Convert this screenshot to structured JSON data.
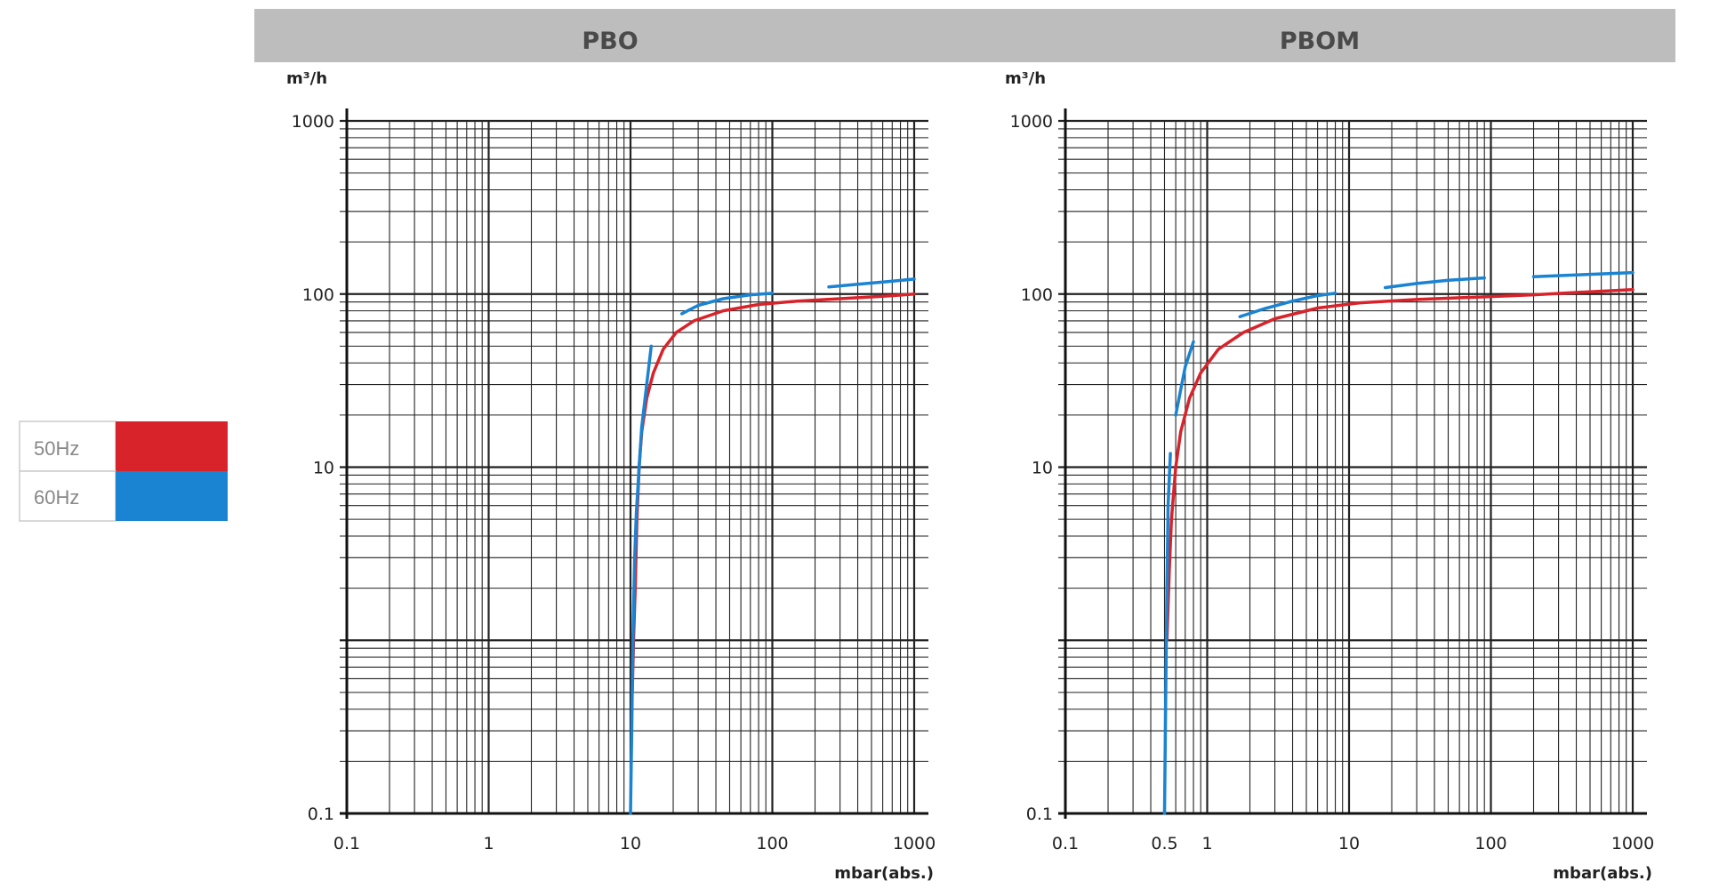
{
  "legend": {
    "items": [
      {
        "label": "50Hz",
        "color": "#d8232a"
      },
      {
        "label": "60Hz",
        "color": "#1a83d2"
      }
    ]
  },
  "chart_data": [
    {
      "type": "line",
      "title": "PBO",
      "ylabel": "m³/h",
      "xlabel": "mbar(abs.)",
      "x_scale": "log",
      "y_scale": "log",
      "xlim": [
        0.1,
        1000
      ],
      "ylim": [
        0.1,
        1000
      ],
      "x_tick_labels": [
        "0.1",
        "1",
        "10",
        "100",
        "1000"
      ],
      "y_tick_labels": [
        "0.1",
        "10",
        "100",
        "1000"
      ],
      "grid": true,
      "series": [
        {
          "legend": "50Hz",
          "color": "#d8232a",
          "segments": [
            [
              [
                10.3,
                0.5
              ],
              [
                10.5,
                1.0
              ],
              [
                10.8,
                2.0
              ],
              [
                11.1,
                5.0
              ],
              [
                11.5,
                10
              ],
              [
                12,
                16
              ],
              [
                13,
                25
              ],
              [
                14.5,
                35
              ],
              [
                17,
                48
              ],
              [
                21,
                60
              ],
              [
                28,
                70
              ],
              [
                45,
                80
              ],
              [
                80,
                87
              ],
              [
                150,
                91
              ],
              [
                300,
                94
              ],
              [
                600,
                97
              ],
              [
                1000,
                100
              ]
            ]
          ]
        },
        {
          "legend": "60Hz",
          "color": "#1a83d2",
          "segments": [
            [
              [
                10,
                0.1
              ],
              [
                10.2,
                0.3
              ],
              [
                10.4,
                1.0
              ],
              [
                10.7,
                3.0
              ],
              [
                11,
                5.5
              ],
              [
                11.5,
                10
              ],
              [
                12,
                17
              ],
              [
                13,
                30
              ],
              [
                14,
                50
              ]
            ],
            [
              [
                23,
                77
              ],
              [
                30,
                86
              ],
              [
                45,
                94
              ],
              [
                70,
                99
              ],
              [
                100,
                101
              ]
            ],
            [
              [
                250,
                110
              ],
              [
                400,
                114
              ],
              [
                650,
                118
              ],
              [
                1000,
                122
              ]
            ]
          ]
        }
      ]
    },
    {
      "type": "line",
      "title": "PBOM",
      "ylabel": "m³/h",
      "xlabel": "mbar(abs.)",
      "x_scale": "log",
      "y_scale": "log",
      "xlim": [
        0.1,
        1000
      ],
      "ylim": [
        0.1,
        1000
      ],
      "x_tick_labels": [
        "0.1",
        "0.5",
        "1",
        "10",
        "100",
        "1000"
      ],
      "x_ticks": [
        0.1,
        0.5,
        1,
        10,
        100,
        1000
      ],
      "y_tick_labels": [
        "0.1",
        "10",
        "100",
        "1000"
      ],
      "grid": true,
      "series": [
        {
          "legend": "50Hz",
          "color": "#d8232a",
          "segments": [
            [
              [
                0.52,
                1.0
              ],
              [
                0.54,
                2.5
              ],
              [
                0.56,
                5
              ],
              [
                0.6,
                10
              ],
              [
                0.65,
                16
              ],
              [
                0.75,
                25
              ],
              [
                0.9,
                35
              ],
              [
                1.2,
                48
              ],
              [
                1.8,
                60
              ],
              [
                3,
                72
              ],
              [
                6,
                83
              ],
              [
                12,
                89
              ],
              [
                30,
                93
              ],
              [
                80,
                96
              ],
              [
                200,
                99
              ],
              [
                500,
                103
              ],
              [
                1000,
                106
              ]
            ]
          ]
        },
        {
          "legend": "60Hz",
          "color": "#1a83d2",
          "segments": [
            [
              [
                0.5,
                0.1
              ],
              [
                0.51,
                0.5
              ],
              [
                0.52,
                2
              ],
              [
                0.53,
                6
              ],
              [
                0.55,
                12
              ]
            ],
            [
              [
                0.6,
                20
              ],
              [
                0.65,
                28
              ],
              [
                0.7,
                38
              ],
              [
                0.8,
                53
              ]
            ],
            [
              [
                1.7,
                74
              ],
              [
                2.5,
                82
              ],
              [
                4,
                91
              ],
              [
                6,
                98
              ],
              [
                8,
                101
              ]
            ],
            [
              [
                18,
                109
              ],
              [
                30,
                115
              ],
              [
                50,
                120
              ],
              [
                90,
                124
              ]
            ],
            [
              [
                200,
                126
              ],
              [
                400,
                129
              ],
              [
                650,
                131
              ],
              [
                1000,
                133
              ]
            ]
          ]
        }
      ]
    }
  ]
}
